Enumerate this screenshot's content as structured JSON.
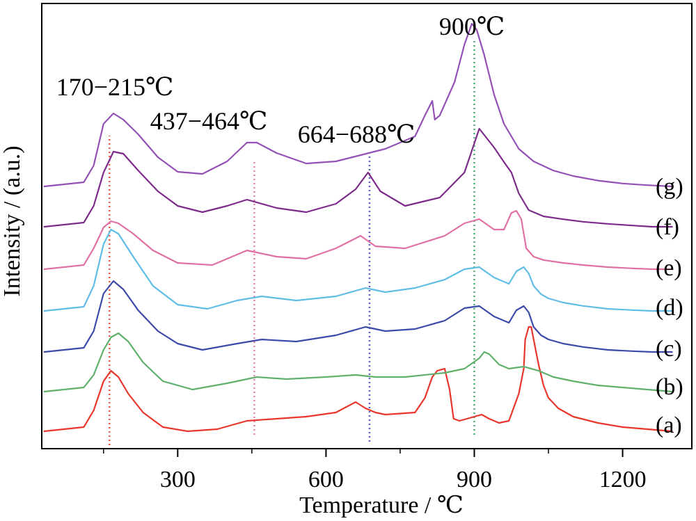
{
  "chart_data": {
    "type": "line",
    "xlabel": "Temperature / ℃",
    "ylabel": "Intensity / (a.u.)",
    "xlim": [
      25,
      1340
    ],
    "x_ticks": [
      300,
      600,
      900,
      1200
    ],
    "x_minor_ticks": [
      150,
      450,
      750,
      1050
    ],
    "ylim": [
      0,
      10
    ],
    "grid": false,
    "annotations": [
      {
        "text": "170−215℃",
        "x": 170,
        "y": 8.9
      },
      {
        "text": "437−464℃",
        "x": 450,
        "y": 8.1
      },
      {
        "text": "664−688℃",
        "x": 676,
        "y": 7.6
      },
      {
        "text": "900℃",
        "x": 900,
        "y": 9.6
      }
    ],
    "guides": [
      {
        "x": 162,
        "color": "#ee5a46"
      },
      {
        "x": 455,
        "color": "#e581ac"
      },
      {
        "x": 688,
        "color": "#5560cc"
      },
      {
        "x": 900,
        "color": "#55aa77"
      }
    ],
    "series": [
      {
        "name": "(a)",
        "color": "#e8362b",
        "x": [
          30,
          110,
          130,
          150,
          165,
          180,
          200,
          230,
          270,
          320,
          380,
          440,
          500,
          560,
          620,
          660,
          680,
          700,
          720,
          780,
          800,
          815,
          825,
          840,
          850,
          858,
          870,
          900,
          915,
          930,
          950,
          970,
          990,
          1000,
          1003,
          1010,
          1015,
          1020,
          1030,
          1040,
          1050,
          1070,
          1100,
          1150,
          1200,
          1250,
          1300
        ],
        "y": [
          0.0,
          0.1,
          0.5,
          1.2,
          1.45,
          1.3,
          0.9,
          0.45,
          0.1,
          0.0,
          0.05,
          0.25,
          0.3,
          0.35,
          0.45,
          0.7,
          0.55,
          0.45,
          0.4,
          0.45,
          0.8,
          1.3,
          1.45,
          1.5,
          1.0,
          0.3,
          0.25,
          0.35,
          0.4,
          0.3,
          0.2,
          0.25,
          0.9,
          1.5,
          2.2,
          2.5,
          2.5,
          2.2,
          1.6,
          1.1,
          0.8,
          0.55,
          0.35,
          0.2,
          0.1,
          0.05,
          0.0
        ]
      },
      {
        "name": "(b)",
        "color": "#5fb06a",
        "x": [
          30,
          110,
          130,
          150,
          165,
          180,
          200,
          230,
          270,
          330,
          400,
          460,
          520,
          600,
          660,
          700,
          760,
          840,
          880,
          910,
          920,
          930,
          950,
          970,
          1000,
          1030,
          1060,
          1100,
          1150,
          1200,
          1250,
          1300
        ],
        "y": [
          0.0,
          0.1,
          0.4,
          1.0,
          1.3,
          1.4,
          1.2,
          0.7,
          0.25,
          0.05,
          0.2,
          0.35,
          0.3,
          0.35,
          0.4,
          0.35,
          0.35,
          0.45,
          0.55,
          0.8,
          0.95,
          0.9,
          0.65,
          0.55,
          0.6,
          0.5,
          0.35,
          0.25,
          0.15,
          0.1,
          0.05,
          0.0
        ]
      },
      {
        "name": "(c)",
        "color": "#3b4aa8",
        "x": [
          30,
          110,
          130,
          150,
          170,
          190,
          220,
          260,
          300,
          350,
          420,
          470,
          540,
          620,
          680,
          720,
          780,
          840,
          880,
          910,
          940,
          970,
          985,
          1000,
          1010,
          1020,
          1035,
          1050,
          1080,
          1120,
          1170,
          1220,
          1260,
          1300
        ],
        "y": [
          0.0,
          0.1,
          0.5,
          1.4,
          1.7,
          1.5,
          1.0,
          0.5,
          0.2,
          0.05,
          0.2,
          0.3,
          0.25,
          0.4,
          0.6,
          0.5,
          0.55,
          0.75,
          1.05,
          1.1,
          0.85,
          0.7,
          1.0,
          1.1,
          0.95,
          0.6,
          0.4,
          0.3,
          0.2,
          0.12,
          0.05,
          0.02,
          0.0,
          0.0
        ]
      },
      {
        "name": "(d)",
        "color": "#5fbde6",
        "x": [
          30,
          110,
          130,
          150,
          165,
          180,
          210,
          250,
          300,
          360,
          420,
          470,
          540,
          620,
          680,
          720,
          780,
          840,
          880,
          910,
          940,
          970,
          985,
          1000,
          1010,
          1020,
          1035,
          1050,
          1080,
          1120,
          1170,
          1220,
          1260,
          1300
        ],
        "y": [
          0.0,
          0.1,
          0.6,
          1.6,
          1.95,
          1.85,
          1.3,
          0.6,
          0.15,
          0.05,
          0.25,
          0.35,
          0.25,
          0.35,
          0.55,
          0.45,
          0.55,
          0.75,
          1.0,
          1.05,
          0.8,
          0.65,
          0.95,
          1.05,
          0.9,
          0.6,
          0.4,
          0.3,
          0.2,
          0.12,
          0.05,
          0.02,
          0.0,
          0.0
        ]
      },
      {
        "name": "(e)",
        "color": "#e070a4",
        "x": [
          30,
          110,
          130,
          150,
          165,
          180,
          210,
          250,
          300,
          370,
          440,
          500,
          560,
          620,
          670,
          700,
          760,
          840,
          880,
          910,
          940,
          960,
          975,
          985,
          995,
          1005,
          1020,
          1040,
          1080,
          1120,
          1170,
          1220,
          1260,
          1300
        ],
        "y": [
          0.0,
          0.1,
          0.5,
          1.0,
          1.15,
          1.1,
          0.85,
          0.45,
          0.15,
          0.1,
          0.45,
          0.3,
          0.25,
          0.5,
          0.8,
          0.55,
          0.5,
          0.8,
          1.1,
          1.2,
          0.95,
          0.95,
          1.35,
          1.4,
          1.2,
          0.5,
          0.3,
          0.22,
          0.15,
          0.1,
          0.05,
          0.02,
          0.0,
          0.0
        ]
      },
      {
        "name": "(f)",
        "color": "#7d2b8a",
        "x": [
          30,
          110,
          130,
          150,
          170,
          190,
          220,
          260,
          300,
          350,
          400,
          440,
          500,
          560,
          620,
          660,
          685,
          710,
          760,
          830,
          880,
          910,
          940,
          960,
          975,
          990,
          1010,
          1040,
          1080,
          1120,
          1170,
          1220,
          1260,
          1300
        ],
        "y": [
          0.0,
          0.1,
          0.5,
          1.3,
          1.8,
          1.75,
          1.35,
          0.85,
          0.5,
          0.35,
          0.5,
          0.65,
          0.45,
          0.35,
          0.55,
          0.9,
          1.3,
          0.85,
          0.5,
          0.7,
          1.3,
          2.35,
          1.9,
          1.55,
          1.3,
          0.8,
          0.4,
          0.25,
          0.18,
          0.12,
          0.07,
          0.03,
          0.0,
          0.0
        ]
      },
      {
        "name": "(g)",
        "color": "#9450b4",
        "x": [
          30,
          110,
          130,
          150,
          170,
          190,
          220,
          260,
          300,
          350,
          400,
          440,
          460,
          500,
          560,
          620,
          670,
          720,
          780,
          800,
          815,
          820,
          830,
          860,
          880,
          895,
          905,
          920,
          940,
          960,
          990,
          1020,
          1060,
          1100,
          1150,
          1200,
          1250,
          1300
        ],
        "y": [
          0.0,
          0.1,
          0.5,
          1.5,
          1.75,
          1.6,
          1.25,
          0.7,
          0.35,
          0.3,
          0.6,
          1.05,
          1.05,
          0.8,
          0.55,
          0.6,
          0.75,
          0.9,
          1.2,
          1.7,
          2.05,
          1.6,
          1.7,
          2.5,
          3.4,
          3.9,
          3.75,
          3.15,
          2.2,
          1.5,
          0.9,
          0.6,
          0.38,
          0.25,
          0.14,
          0.07,
          0.03,
          0.0
        ]
      }
    ]
  }
}
